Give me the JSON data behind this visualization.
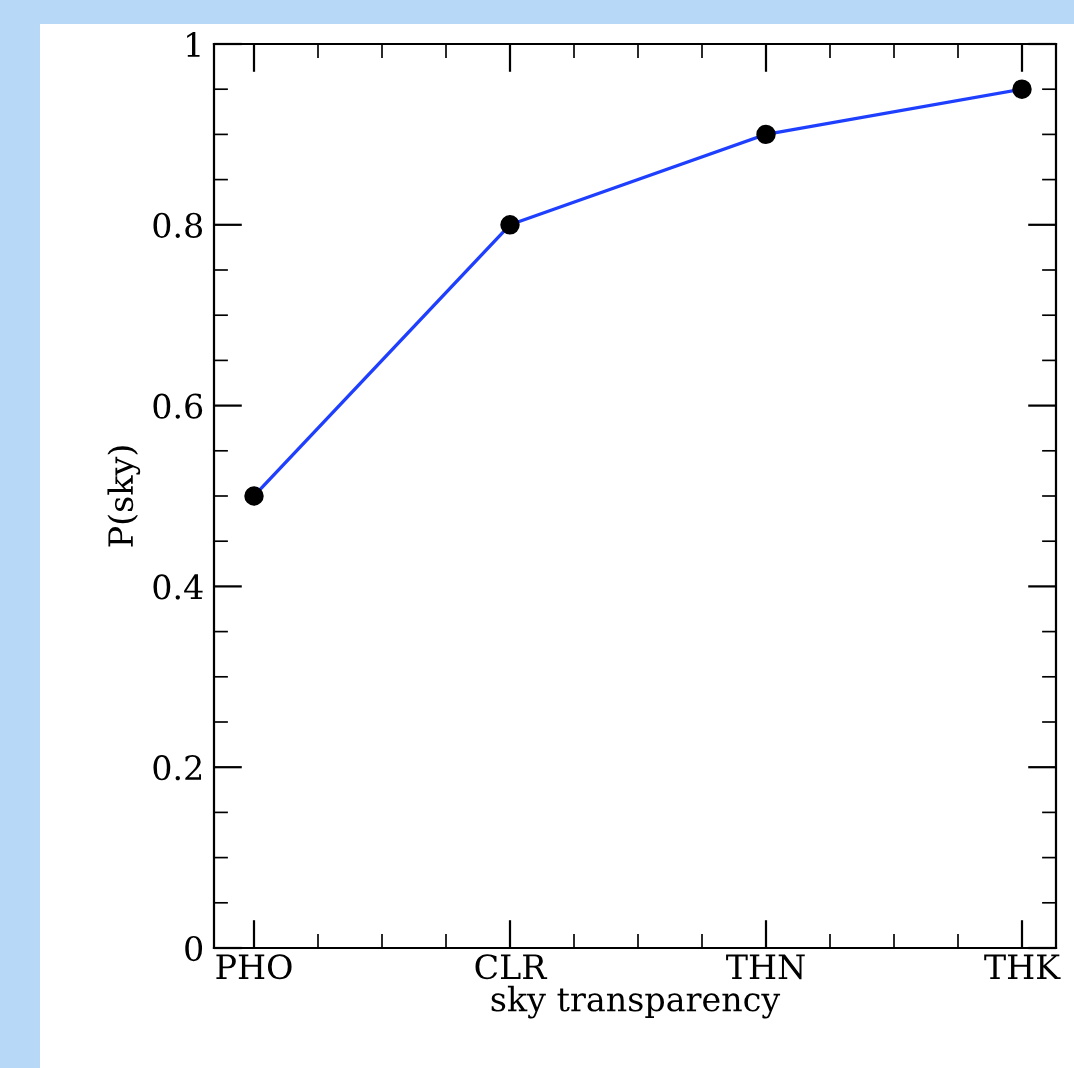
{
  "chart_data": {
    "type": "line",
    "xlabel": "sky transparency",
    "ylabel": "P(sky)",
    "categories": [
      "PHO",
      "CLR",
      "THN",
      "THK"
    ],
    "series": [
      {
        "color": "#1f3fff",
        "values": [
          0.5,
          0.8,
          0.9,
          0.95
        ]
      }
    ],
    "marker": "circle",
    "line_style": "solid",
    "ylim": [
      0,
      1
    ],
    "yticks": [
      0,
      0.2,
      0.4,
      0.6,
      0.8,
      1
    ],
    "grid": false,
    "legend": false
  }
}
